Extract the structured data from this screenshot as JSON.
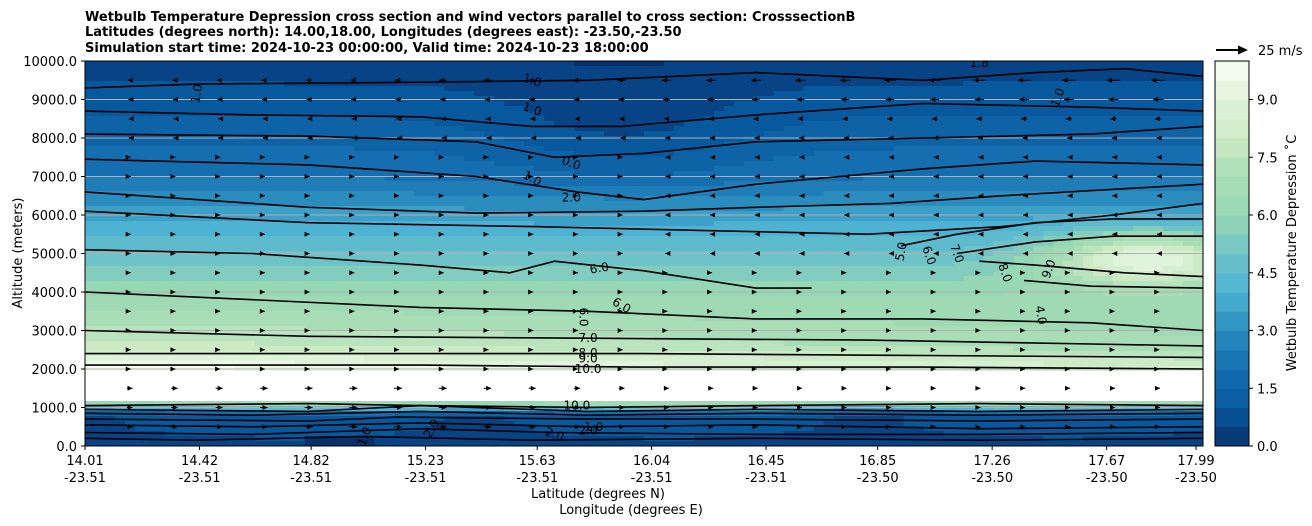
{
  "chart_data": {
    "type": "contourf",
    "title_lines": [
      "Wetbulb Temperature Depression cross section and wind vectors parallel to cross section: CrosssectionB",
      "Latitudes (degrees north): 14.00,18.00, Longitudes (degrees east): -23.50,-23.50",
      "Simulation start time: 2024-10-23 00:00:00, Valid time: 2024-10-23 18:00:00"
    ],
    "ylabel": "Altitude (meters)",
    "xlabel_line1": "Latitude (degrees N)",
    "xlabel_line2": "Longitude (degrees E)",
    "ylim": [
      0,
      10000
    ],
    "y_ticks": [
      "0.0",
      "1000.0",
      "2000.0",
      "3000.0",
      "4000.0",
      "5000.0",
      "6000.0",
      "7000.0",
      "8000.0",
      "9000.0",
      "10000.0"
    ],
    "y_tick_values": [
      0,
      1000,
      2000,
      3000,
      4000,
      5000,
      6000,
      7000,
      8000,
      9000,
      10000
    ],
    "x_ticks": [
      {
        "lat": "14.01",
        "lon": "-23.51"
      },
      {
        "lat": "14.42",
        "lon": "-23.51"
      },
      {
        "lat": "14.82",
        "lon": "-23.51"
      },
      {
        "lat": "15.23",
        "lon": "-23.51"
      },
      {
        "lat": "15.63",
        "lon": "-23.51"
      },
      {
        "lat": "16.04",
        "lon": "-23.51"
      },
      {
        "lat": "16.45",
        "lon": "-23.51"
      },
      {
        "lat": "16.85",
        "lon": "-23.50"
      },
      {
        "lat": "17.26",
        "lon": "-23.50"
      },
      {
        "lat": "17.67",
        "lon": "-23.50"
      },
      {
        "lat": "17.99",
        "lon": "-23.50"
      }
    ],
    "x_tick_fractions": [
      0,
      0.0916,
      0.1808,
      0.2723,
      0.3616,
      0.4531,
      0.5446,
      0.6339,
      0.7254,
      0.817,
      0.8884
    ],
    "colorbar": {
      "label": "Wetbulb Temperature Depression ˚C",
      "ticks": [
        "0.0",
        "1.5",
        "3.0",
        "4.5",
        "6.0",
        "7.5",
        "9.0"
      ],
      "tick_values": [
        0,
        1.5,
        3,
        4.5,
        6,
        7.5,
        9
      ],
      "range": [
        0,
        10
      ]
    },
    "quiver_key": "25 m/s",
    "contour_levels": [
      1,
      2,
      3,
      4,
      5,
      6,
      7,
      8,
      9,
      10
    ],
    "contour_labels": [
      {
        "text": "1.0",
        "x": 0.1,
        "y": 9150,
        "rot": -80
      },
      {
        "text": "1.0",
        "x": 0.4,
        "y": 9500,
        "rot": 20
      },
      {
        "text": "1.0",
        "x": 0.4,
        "y": 8750,
        "rot": 20
      },
      {
        "text": "1.0",
        "x": 0.4,
        "y": 6950,
        "rot": 30
      },
      {
        "text": "0.0",
        "x": 0.435,
        "y": 7350,
        "rot": 20
      },
      {
        "text": "2.0",
        "x": 0.435,
        "y": 6450,
        "rot": 0
      },
      {
        "text": "1.0",
        "x": 0.87,
        "y": 9050,
        "rot": -70
      },
      {
        "text": "6.0",
        "x": 0.46,
        "y": 4620,
        "rot": -10
      },
      {
        "text": "6.0",
        "x": 0.48,
        "y": 3650,
        "rot": 30
      },
      {
        "text": "6.0",
        "x": 0.446,
        "y": 3350,
        "rot": 90
      },
      {
        "text": "7.0",
        "x": 0.45,
        "y": 2800,
        "rot": 0
      },
      {
        "text": "8.0",
        "x": 0.45,
        "y": 2420,
        "rot": 0
      },
      {
        "text": "9.0",
        "x": 0.45,
        "y": 2270,
        "rot": 0
      },
      {
        "text": "10.0",
        "x": 0.45,
        "y": 2000,
        "rot": 0
      },
      {
        "text": "5.0",
        "x": 0.73,
        "y": 5050,
        "rot": -80
      },
      {
        "text": "6.0",
        "x": 0.755,
        "y": 4950,
        "rot": 70
      },
      {
        "text": "7.0",
        "x": 0.78,
        "y": 5000,
        "rot": 70
      },
      {
        "text": "8.0",
        "x": 0.823,
        "y": 4500,
        "rot": 70
      },
      {
        "text": "9.0",
        "x": 0.862,
        "y": 4600,
        "rot": -70
      },
      {
        "text": "4.0",
        "x": 0.855,
        "y": 3400,
        "rot": 80
      },
      {
        "text": "1.0",
        "x": 0.25,
        "y": 250,
        "rot": -70
      },
      {
        "text": "2.0",
        "x": 0.31,
        "y": 450,
        "rot": -60
      },
      {
        "text": "2.0",
        "x": 0.42,
        "y": 300,
        "rot": 20
      },
      {
        "text": "2.0",
        "x": 0.45,
        "y": 400,
        "rot": 0
      },
      {
        "text": "1.0",
        "x": 0.455,
        "y": 500,
        "rot": 0
      },
      {
        "text": "10.0",
        "x": 0.44,
        "y": 1050,
        "rot": 0
      },
      {
        "text": "1.8",
        "x": 0.8,
        "y": 9950,
        "rot": 0
      }
    ]
  }
}
